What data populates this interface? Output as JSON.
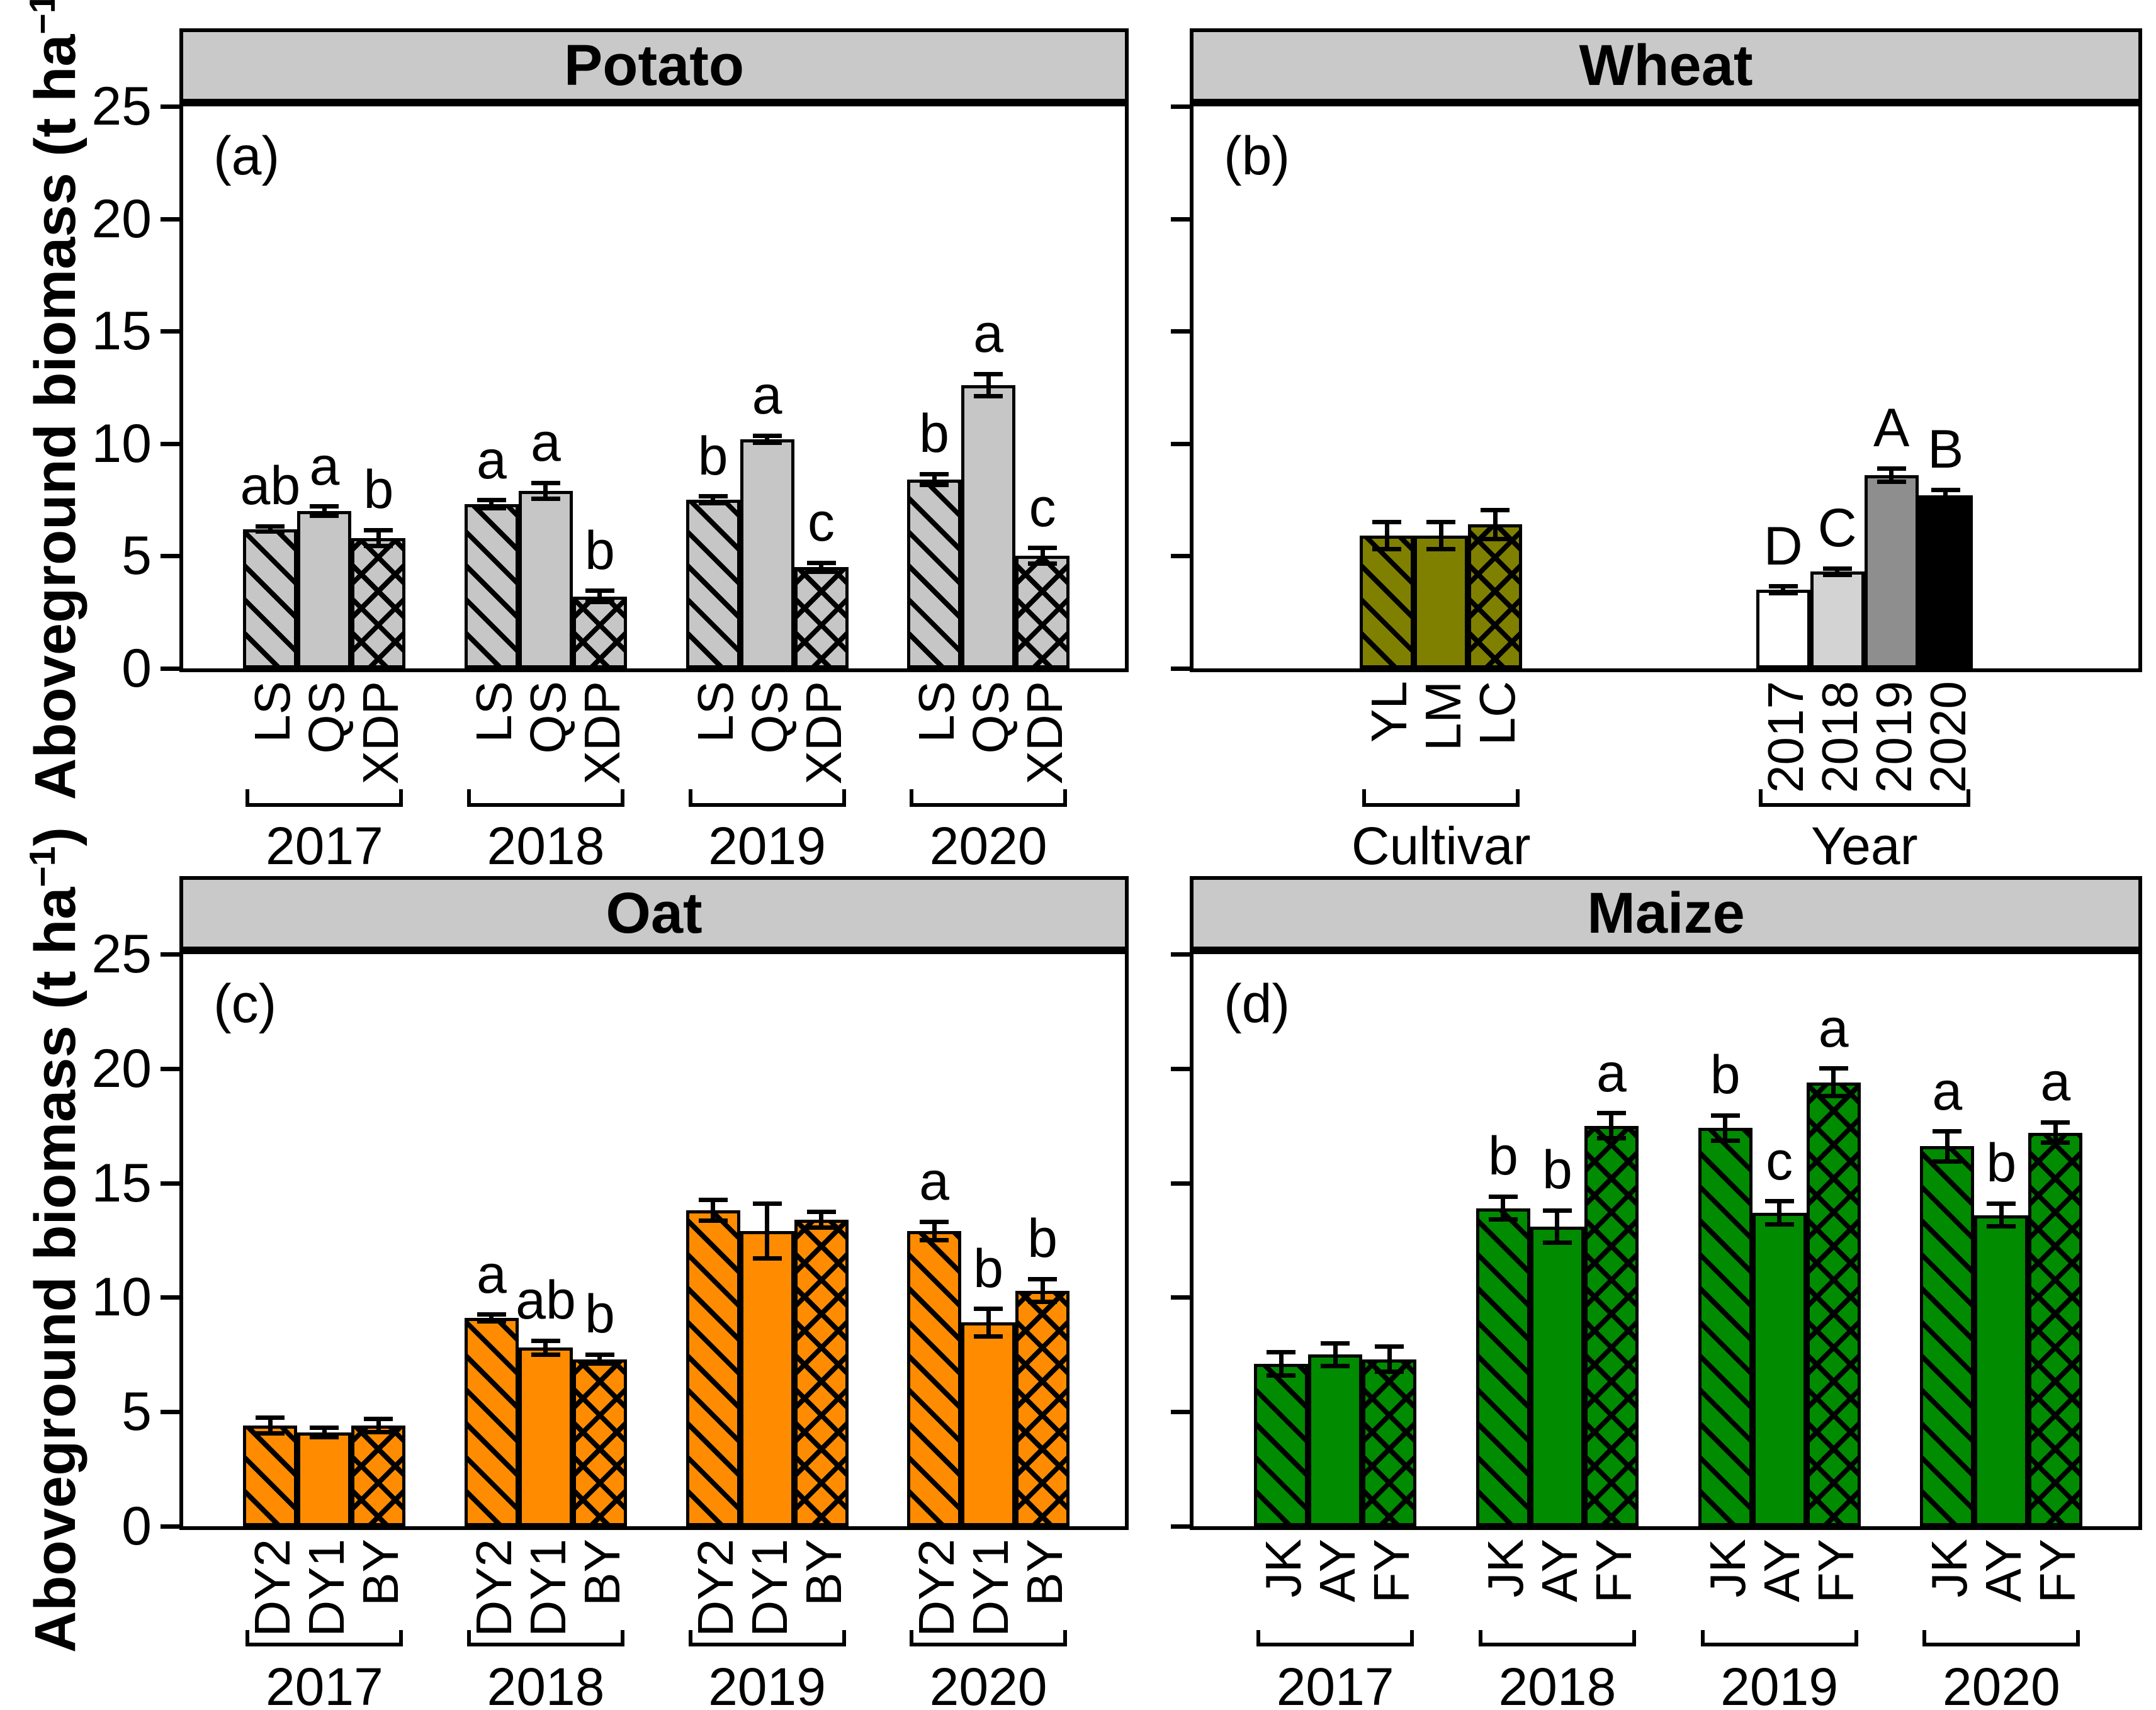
{
  "figure": {
    "y_axis_label": {
      "pre": "Aboveground biomass (t ha",
      "sup": "−1",
      "post": ")"
    },
    "ink_color": "#000000",
    "header_bg": "#c9c9c9",
    "background": "#ffffff"
  },
  "chart_data": [
    {
      "type": "bar",
      "title": "Potato",
      "panel_label": "(a)",
      "ylabel": "Aboveground biomass (t ha-1)",
      "ylim": [
        0,
        25
      ],
      "yticks": [
        0,
        5,
        10,
        15,
        20,
        25
      ],
      "show_ytick_labels": true,
      "grid": false,
      "groups": [
        {
          "label": "2017",
          "bars": [
            {
              "x": "LS",
              "value": 6.2,
              "err": 0.12,
              "letter": "ab",
              "fill": "#c6c6c6",
              "hatch": "diag"
            },
            {
              "x": "QS",
              "value": 7.0,
              "err": 0.2,
              "letter": "a",
              "fill": "#c6c6c6",
              "hatch": "none"
            },
            {
              "x": "XDP",
              "value": 5.8,
              "err": 0.35,
              "letter": "b",
              "fill": "#c6c6c6",
              "hatch": "cross"
            }
          ]
        },
        {
          "label": "2018",
          "bars": [
            {
              "x": "LS",
              "value": 7.3,
              "err": 0.18,
              "letter": "a",
              "fill": "#c6c6c6",
              "hatch": "diag"
            },
            {
              "x": "QS",
              "value": 7.9,
              "err": 0.35,
              "letter": "a",
              "fill": "#c6c6c6",
              "hatch": "none"
            },
            {
              "x": "XDP",
              "value": 3.2,
              "err": 0.25,
              "letter": "b",
              "fill": "#c6c6c6",
              "hatch": "cross"
            }
          ]
        },
        {
          "label": "2019",
          "bars": [
            {
              "x": "LS",
              "value": 7.5,
              "err": 0.15,
              "letter": "b",
              "fill": "#c6c6c6",
              "hatch": "diag"
            },
            {
              "x": "QS",
              "value": 10.2,
              "err": 0.15,
              "letter": "a",
              "fill": "#c6c6c6",
              "hatch": "none"
            },
            {
              "x": "XDP",
              "value": 4.5,
              "err": 0.2,
              "letter": "c",
              "fill": "#c6c6c6",
              "hatch": "cross"
            }
          ]
        },
        {
          "label": "2020",
          "bars": [
            {
              "x": "LS",
              "value": 8.4,
              "err": 0.25,
              "letter": "b",
              "fill": "#c6c6c6",
              "hatch": "diag"
            },
            {
              "x": "QS",
              "value": 12.6,
              "err": 0.5,
              "letter": "a",
              "fill": "#c6c6c6",
              "hatch": "none"
            },
            {
              "x": "XDP",
              "value": 5.0,
              "err": 0.35,
              "letter": "c",
              "fill": "#c6c6c6",
              "hatch": "cross"
            }
          ]
        }
      ]
    },
    {
      "type": "bar",
      "title": "Wheat",
      "panel_label": "(b)",
      "ylim": [
        0,
        25
      ],
      "yticks": [
        0,
        5,
        10,
        15,
        20,
        25
      ],
      "show_ytick_labels": false,
      "grid": false,
      "groups": [
        {
          "label": "Cultivar",
          "bars": [
            {
              "x": "YL",
              "value": 5.9,
              "err": 0.6,
              "letter": "",
              "fill": "#808000",
              "hatch": "diag"
            },
            {
              "x": "LM",
              "value": 5.9,
              "err": 0.6,
              "letter": "",
              "fill": "#808000",
              "hatch": "none"
            },
            {
              "x": "LC",
              "value": 6.4,
              "err": 0.65,
              "letter": "",
              "fill": "#808000",
              "hatch": "cross"
            }
          ]
        },
        {
          "label": "Year",
          "bars": [
            {
              "x": "2017",
              "value": 3.5,
              "err": 0.15,
              "letter": "D",
              "fill": "#ffffff",
              "hatch": "none"
            },
            {
              "x": "2018",
              "value": 4.3,
              "err": 0.15,
              "letter": "C",
              "fill": "#d3d3d3",
              "hatch": "none"
            },
            {
              "x": "2019",
              "value": 8.6,
              "err": 0.3,
              "letter": "A",
              "fill": "#8e8e8e",
              "hatch": "none"
            },
            {
              "x": "2020",
              "value": 7.7,
              "err": 0.25,
              "letter": "B",
              "fill": "#000000",
              "hatch": "none"
            }
          ]
        }
      ]
    },
    {
      "type": "bar",
      "title": "Oat",
      "panel_label": "(c)",
      "ylabel": "Aboveground biomass (t ha-1)",
      "ylim": [
        0,
        25
      ],
      "yticks": [
        0,
        5,
        10,
        15,
        20,
        25
      ],
      "show_ytick_labels": true,
      "grid": false,
      "groups": [
        {
          "label": "2017",
          "bars": [
            {
              "x": "DY2",
              "value": 4.4,
              "err": 0.35,
              "letter": "",
              "fill": "#ff8c00",
              "hatch": "diag"
            },
            {
              "x": "DY1",
              "value": 4.1,
              "err": 0.2,
              "letter": "",
              "fill": "#ff8c00",
              "hatch": "none"
            },
            {
              "x": "BY",
              "value": 4.4,
              "err": 0.3,
              "letter": "",
              "fill": "#ff8c00",
              "hatch": "cross"
            }
          ]
        },
        {
          "label": "2018",
          "bars": [
            {
              "x": "DY2",
              "value": 9.1,
              "err": 0.15,
              "letter": "a",
              "fill": "#ff8c00",
              "hatch": "diag"
            },
            {
              "x": "DY1",
              "value": 7.8,
              "err": 0.3,
              "letter": "ab",
              "fill": "#ff8c00",
              "hatch": "none"
            },
            {
              "x": "BY",
              "value": 7.3,
              "err": 0.2,
              "letter": "b",
              "fill": "#ff8c00",
              "hatch": "cross"
            }
          ]
        },
        {
          "label": "2019",
          "bars": [
            {
              "x": "DY2",
              "value": 13.8,
              "err": 0.45,
              "letter": "",
              "fill": "#ff8c00",
              "hatch": "diag"
            },
            {
              "x": "DY1",
              "value": 12.9,
              "err": 1.2,
              "letter": "",
              "fill": "#ff8c00",
              "hatch": "none"
            },
            {
              "x": "BY",
              "value": 13.4,
              "err": 0.35,
              "letter": "",
              "fill": "#ff8c00",
              "hatch": "cross"
            }
          ]
        },
        {
          "label": "2020",
          "bars": [
            {
              "x": "DY2",
              "value": 12.9,
              "err": 0.4,
              "letter": "a",
              "fill": "#ff8c00",
              "hatch": "diag"
            },
            {
              "x": "DY1",
              "value": 8.9,
              "err": 0.6,
              "letter": "b",
              "fill": "#ff8c00",
              "hatch": "none"
            },
            {
              "x": "BY",
              "value": 10.3,
              "err": 0.5,
              "letter": "b",
              "fill": "#ff8c00",
              "hatch": "cross"
            }
          ]
        }
      ]
    },
    {
      "type": "bar",
      "title": "Maize",
      "panel_label": "(d)",
      "ylim": [
        0,
        25
      ],
      "yticks": [
        0,
        5,
        10,
        15,
        20,
        25
      ],
      "show_ytick_labels": false,
      "grid": false,
      "groups": [
        {
          "label": "2017",
          "bars": [
            {
              "x": "JK",
              "value": 7.1,
              "err": 0.5,
              "letter": "",
              "fill": "#008b00",
              "hatch": "diag"
            },
            {
              "x": "AY",
              "value": 7.5,
              "err": 0.5,
              "letter": "",
              "fill": "#008b00",
              "hatch": "none"
            },
            {
              "x": "FY",
              "value": 7.3,
              "err": 0.55,
              "letter": "",
              "fill": "#008b00",
              "hatch": "cross"
            }
          ]
        },
        {
          "label": "2018",
          "bars": [
            {
              "x": "JK",
              "value": 13.9,
              "err": 0.5,
              "letter": "b",
              "fill": "#008b00",
              "hatch": "diag"
            },
            {
              "x": "AY",
              "value": 13.1,
              "err": 0.7,
              "letter": "b",
              "fill": "#008b00",
              "hatch": "none"
            },
            {
              "x": "FY",
              "value": 17.5,
              "err": 0.55,
              "letter": "a",
              "fill": "#008b00",
              "hatch": "cross"
            }
          ]
        },
        {
          "label": "2019",
          "bars": [
            {
              "x": "JK",
              "value": 17.4,
              "err": 0.55,
              "letter": "b",
              "fill": "#008b00",
              "hatch": "diag"
            },
            {
              "x": "AY",
              "value": 13.7,
              "err": 0.5,
              "letter": "c",
              "fill": "#008b00",
              "hatch": "none"
            },
            {
              "x": "FY",
              "value": 19.4,
              "err": 0.6,
              "letter": "a",
              "fill": "#008b00",
              "hatch": "cross"
            }
          ]
        },
        {
          "label": "2020",
          "bars": [
            {
              "x": "JK",
              "value": 16.6,
              "err": 0.65,
              "letter": "a",
              "fill": "#008b00",
              "hatch": "diag"
            },
            {
              "x": "AY",
              "value": 13.6,
              "err": 0.5,
              "letter": "b",
              "fill": "#008b00",
              "hatch": "none"
            },
            {
              "x": "FY",
              "value": 17.2,
              "err": 0.45,
              "letter": "a",
              "fill": "#008b00",
              "hatch": "cross"
            }
          ]
        }
      ]
    }
  ]
}
